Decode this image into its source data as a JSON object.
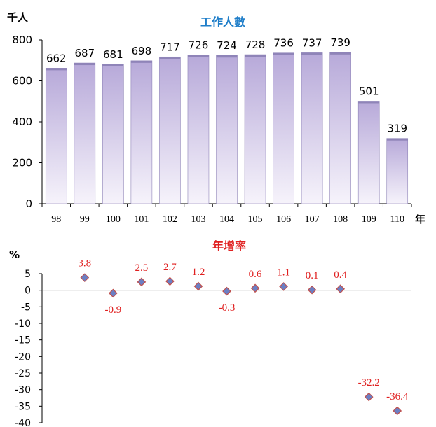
{
  "chart_data": [
    {
      "type": "bar",
      "title": "工作人數",
      "unit_label": "千人",
      "x_unit_label": "年",
      "categories": [
        "98",
        "99",
        "100",
        "101",
        "102",
        "103",
        "104",
        "105",
        "106",
        "107",
        "108",
        "109",
        "110"
      ],
      "values": [
        662,
        687,
        681,
        698,
        717,
        726,
        724,
        728,
        736,
        737,
        739,
        501,
        319
      ],
      "ylim": [
        0,
        800
      ],
      "yticks": [
        0,
        200,
        400,
        600,
        800
      ],
      "grid": false,
      "colors": {
        "bar_top": "#b7a9d9",
        "bar_bottom": "#f6f3fb",
        "bar_edge": "#8f84b8",
        "title": "#1f7ec9"
      }
    },
    {
      "type": "scatter",
      "title": "年增率",
      "unit_label": "%",
      "categories": [
        "98",
        "99",
        "100",
        "101",
        "102",
        "103",
        "104",
        "105",
        "106",
        "107",
        "108",
        "109",
        "110"
      ],
      "values": [
        3.8,
        -0.9,
        2.5,
        2.7,
        1.2,
        -0.3,
        0.6,
        1.1,
        0.1,
        0.4,
        -32.2,
        -36.4
      ],
      "labels": [
        "3.8",
        "-0.9",
        "2.5",
        "2.7",
        "1.2",
        "-0.3",
        "0.6",
        "1.1",
        "0.1",
        "0.4",
        "-32.2",
        "-36.4"
      ],
      "x_index": [
        1,
        2,
        3,
        4,
        5,
        6,
        7,
        8,
        9,
        10,
        11,
        12
      ],
      "ylim": [
        -40,
        5
      ],
      "yticks": [
        5,
        0,
        -5,
        -10,
        -15,
        -20,
        -25,
        -30,
        -35,
        -40
      ],
      "grid": false,
      "colors": {
        "marker": "#6b7fc4",
        "marker_edge": "#c0504d",
        "label": "#e02020",
        "title": "#e02020"
      }
    }
  ]
}
